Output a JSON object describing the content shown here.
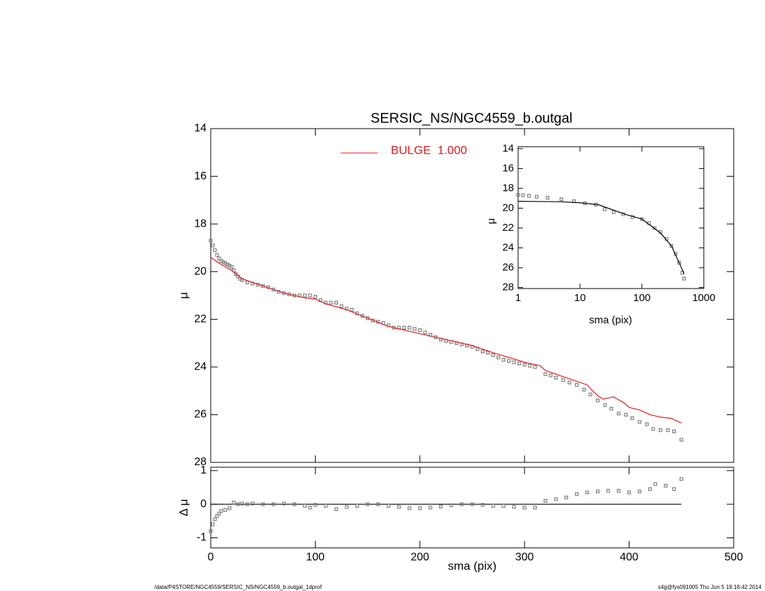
{
  "chart_data": [
    {
      "type": "scatter",
      "title": "SERSIC_NS/NGC4559_b.outgal",
      "ylabel": "μ",
      "xlim": [
        0,
        500
      ],
      "ylim": [
        28,
        14
      ],
      "yticks": [
        14,
        16,
        18,
        20,
        22,
        24,
        26,
        28
      ],
      "series": [
        {
          "color": "#808080",
          "marker": "square",
          "x": [
            0,
            2,
            4,
            6,
            8,
            10,
            12,
            14,
            16,
            18,
            20,
            22,
            24,
            26,
            28,
            30,
            35,
            40,
            45,
            50,
            55,
            60,
            65,
            70,
            75,
            80,
            85,
            90,
            95,
            100,
            105,
            110,
            115,
            120,
            125,
            130,
            135,
            140,
            145,
            150,
            155,
            160,
            165,
            170,
            175,
            180,
            185,
            190,
            195,
            200,
            205,
            210,
            215,
            220,
            225,
            230,
            235,
            240,
            245,
            250,
            255,
            260,
            265,
            270,
            275,
            280,
            285,
            290,
            295,
            300,
            305,
            310,
            320,
            325,
            330,
            337,
            343,
            350,
            357,
            363,
            370,
            377,
            383,
            390,
            397,
            403,
            410,
            417,
            423,
            430,
            437,
            443,
            450
          ],
          "values": [
            18.7,
            18.9,
            19.1,
            19.3,
            19.45,
            19.55,
            19.6,
            19.65,
            19.7,
            19.75,
            19.8,
            19.95,
            20.1,
            20.2,
            20.3,
            20.35,
            20.45,
            20.5,
            20.55,
            20.6,
            20.65,
            20.75,
            20.85,
            20.9,
            20.95,
            21.0,
            21.0,
            21.0,
            21.0,
            21.05,
            21.2,
            21.3,
            21.3,
            21.3,
            21.45,
            21.55,
            21.6,
            21.75,
            21.85,
            21.95,
            22.05,
            22.1,
            22.15,
            22.25,
            22.35,
            22.35,
            22.35,
            22.35,
            22.4,
            22.45,
            22.55,
            22.65,
            22.75,
            22.85,
            22.9,
            22.95,
            23.0,
            23.05,
            23.1,
            23.15,
            23.25,
            23.35,
            23.4,
            23.5,
            23.6,
            23.7,
            23.75,
            23.8,
            23.85,
            23.9,
            23.95,
            24.0,
            24.3,
            24.35,
            24.45,
            24.55,
            24.65,
            24.75,
            24.95,
            25.15,
            25.4,
            25.6,
            25.75,
            25.95,
            26.0,
            26.15,
            26.3,
            26.4,
            26.6,
            26.65,
            26.65,
            26.7,
            27.05
          ]
        },
        {
          "name": "BULGE  1.000",
          "color": "#e41a1c",
          "marker": "line",
          "x": [
            0,
            10,
            20,
            30,
            50,
            70,
            90,
            100,
            110,
            130,
            150,
            170,
            180,
            200,
            230,
            250,
            270,
            300,
            315,
            320,
            340,
            360,
            365,
            370,
            375,
            380,
            385,
            395,
            400,
            410,
            420,
            430,
            440,
            450
          ],
          "values": [
            19.4,
            19.7,
            19.95,
            20.3,
            20.6,
            20.9,
            21.1,
            21.15,
            21.35,
            21.6,
            21.95,
            22.3,
            22.4,
            22.6,
            22.9,
            23.1,
            23.4,
            23.8,
            23.95,
            24.15,
            24.45,
            24.75,
            25.0,
            25.2,
            25.35,
            25.3,
            25.25,
            25.5,
            25.7,
            25.8,
            26.0,
            26.1,
            26.15,
            26.35
          ]
        }
      ]
    },
    {
      "type": "scatter",
      "xlabel": "sma (pix)",
      "ylabel": "Δ μ",
      "xlim": [
        0,
        500
      ],
      "xticks": [
        0,
        100,
        200,
        300,
        400,
        500
      ],
      "ylim": [
        -1.3,
        1.1
      ],
      "yticks": [
        -1,
        0,
        1
      ],
      "series": [
        {
          "color": "#000000",
          "marker": "line",
          "x": [
            0,
            450
          ],
          "values": [
            0,
            0
          ]
        },
        {
          "color": "#808080",
          "marker": "square",
          "x": [
            0,
            2,
            4,
            6,
            8,
            10,
            14,
            18,
            22,
            26,
            30,
            35,
            40,
            50,
            60,
            70,
            80,
            90,
            95,
            100,
            110,
            120,
            130,
            140,
            150,
            160,
            170,
            180,
            190,
            200,
            210,
            220,
            230,
            240,
            250,
            260,
            270,
            280,
            290,
            300,
            310,
            320,
            330,
            340,
            350,
            360,
            370,
            380,
            390,
            400,
            410,
            420,
            425,
            435,
            443,
            450
          ],
          "values": [
            -0.8,
            -0.6,
            -0.45,
            -0.35,
            -0.28,
            -0.2,
            -0.17,
            -0.12,
            0.05,
            0.0,
            0.02,
            0.0,
            0.02,
            0.0,
            0.0,
            0.02,
            0.0,
            -0.05,
            -0.1,
            -0.02,
            -0.05,
            -0.15,
            -0.08,
            -0.05,
            0.0,
            0.0,
            -0.05,
            -0.08,
            -0.12,
            -0.12,
            -0.1,
            -0.07,
            -0.03,
            0.0,
            0.0,
            -0.02,
            -0.05,
            -0.05,
            -0.08,
            -0.1,
            -0.1,
            0.1,
            0.15,
            0.2,
            0.3,
            0.35,
            0.38,
            0.4,
            0.4,
            0.35,
            0.38,
            0.45,
            0.6,
            0.55,
            0.45,
            0.75
          ]
        }
      ]
    },
    {
      "type": "scatter",
      "xlabel": "sma (pix)",
      "ylabel": "μ",
      "xlog": true,
      "xlim": [
        1,
        1000
      ],
      "xticks": [
        1,
        10,
        100,
        1000
      ],
      "ylim": [
        28.1,
        13.8
      ],
      "yticks": [
        14,
        16,
        18,
        20,
        22,
        24,
        26,
        28
      ],
      "series": [
        {
          "color": "#808080",
          "marker": "square",
          "x": [
            1,
            1.2,
            1.5,
            2,
            3,
            5,
            8,
            12,
            18,
            25,
            35,
            50,
            70,
            100,
            130,
            160,
            200,
            250,
            300,
            350,
            400,
            450,
            480
          ],
          "values": [
            18.65,
            18.7,
            18.75,
            18.85,
            18.95,
            19.1,
            19.3,
            19.5,
            19.65,
            20.1,
            20.4,
            20.6,
            20.9,
            21.1,
            21.5,
            22.0,
            22.4,
            23.1,
            23.8,
            24.6,
            25.5,
            26.5,
            27.1
          ]
        },
        {
          "color": "#000000",
          "marker": "line",
          "x": [
            1,
            5,
            10,
            20,
            50,
            100,
            200,
            300,
            400,
            480
          ],
          "values": [
            19.3,
            19.35,
            19.45,
            19.65,
            20.55,
            21.1,
            22.5,
            23.8,
            25.5,
            26.6
          ]
        }
      ]
    }
  ],
  "footer": {
    "left": "/data/P4STORE/NGC4559/SERSIC_NS/NGC4559_b.outgal_1dprof",
    "right": "s4g@fys091005  Thu Jun  5 19:16:42 2014"
  }
}
